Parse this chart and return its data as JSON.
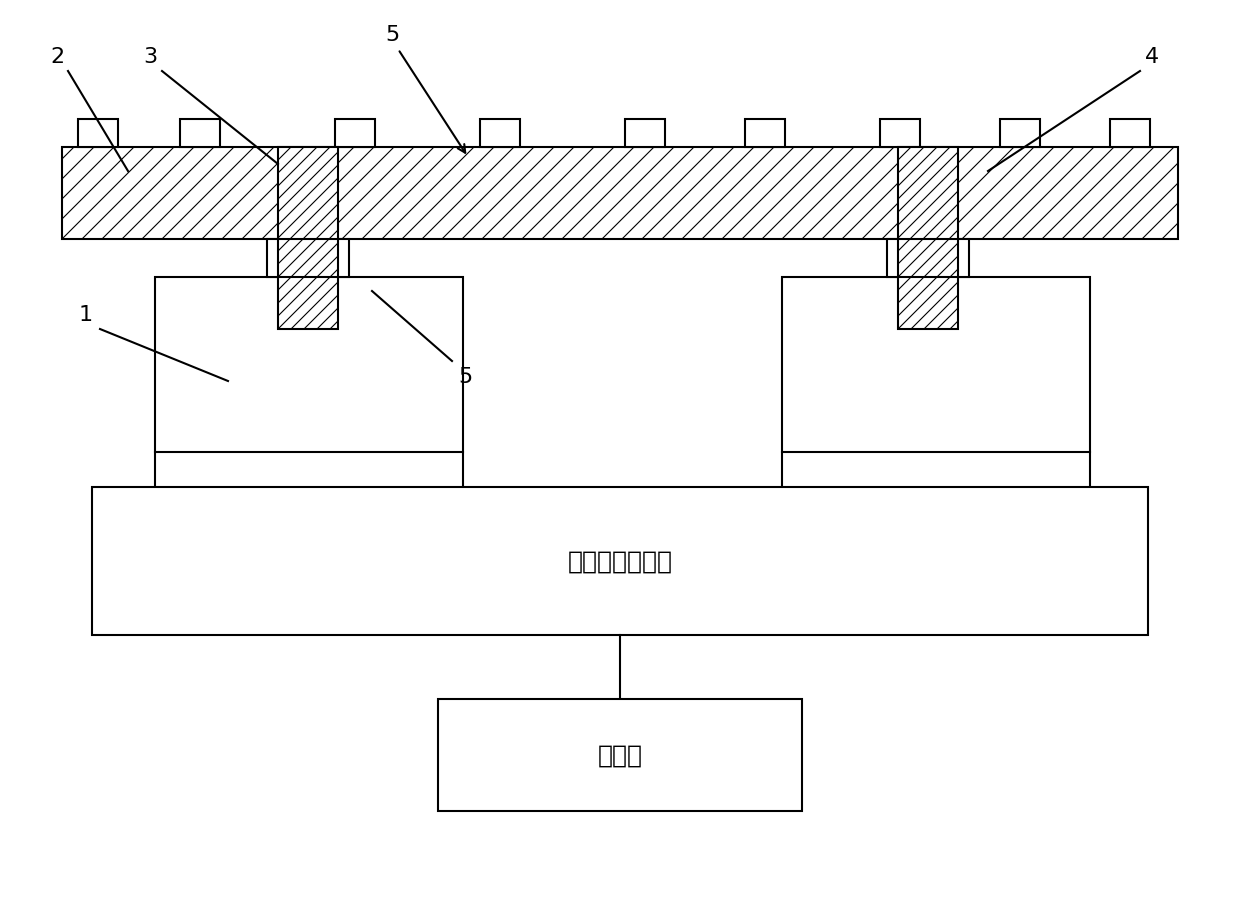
{
  "bg_color": "#ffffff",
  "line_color": "#000000",
  "text_box1": "动态电阱应变仪",
  "text_box2": "计算机",
  "font_size_label": 16,
  "font_size_box": 18,
  "lw": 1.5
}
